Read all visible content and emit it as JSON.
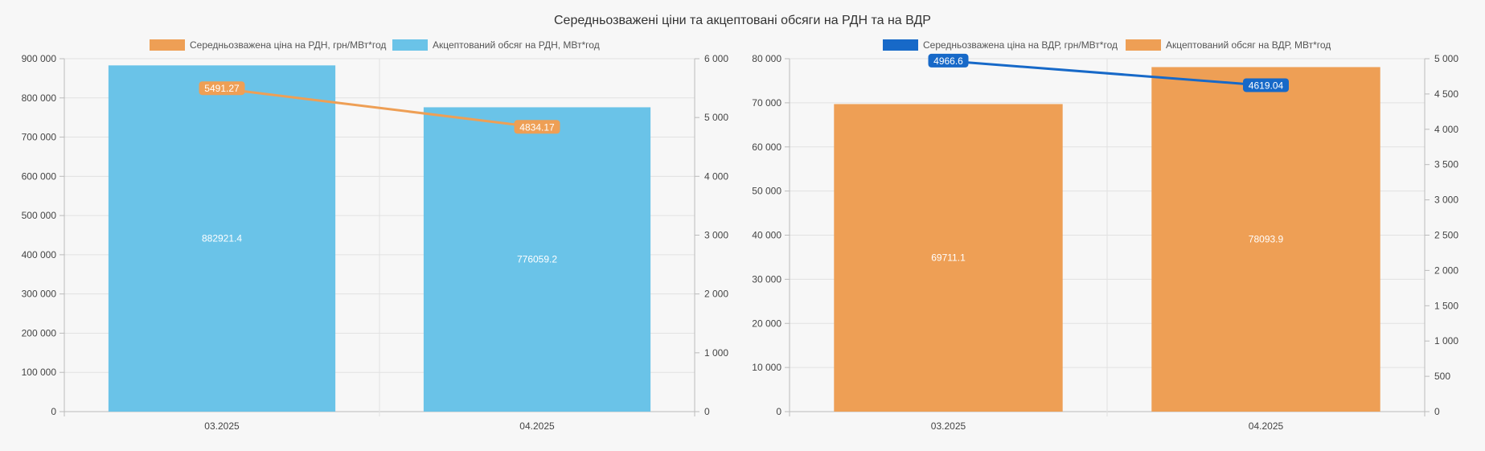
{
  "title": "Середньозважені ціни та акцептовані обсяги на РДН та на ВДР",
  "chart_data": [
    {
      "type": "bar+line",
      "categories": [
        "03.2025",
        "04.2025"
      ],
      "series": [
        {
          "name": "Середньозважена ціна на РДН, грн/МВт*год",
          "type": "line",
          "axis": "right",
          "color": "#EE9F55",
          "values": [
            5491.27,
            4834.17
          ]
        },
        {
          "name": "Акцептований обсяг на РДН, МВт*год",
          "type": "bar",
          "axis": "left",
          "color": "#6AC3E8",
          "values": [
            882921.4,
            776059.2
          ]
        }
      ],
      "y_left": {
        "range": [
          0,
          900000
        ],
        "ticks": [
          0,
          100000,
          200000,
          300000,
          400000,
          500000,
          600000,
          700000,
          800000,
          900000
        ],
        "tick_labels": [
          "0",
          "100 000",
          "200 000",
          "300 000",
          "400 000",
          "500 000",
          "600 000",
          "700 000",
          "800 000",
          "900 000"
        ]
      },
      "y_right": {
        "range": [
          0,
          6000
        ],
        "ticks": [
          0,
          1000,
          2000,
          3000,
          4000,
          5000,
          6000
        ],
        "tick_labels": [
          "0",
          "1 000",
          "2 000",
          "3 000",
          "4 000",
          "5 000",
          "6 000"
        ]
      },
      "bar_labels": [
        "882921.4",
        "776059.2"
      ],
      "point_labels": [
        "5491.27",
        "4834.17"
      ],
      "legend_position": "top-center",
      "grid": true
    },
    {
      "type": "bar+line",
      "categories": [
        "03.2025",
        "04.2025"
      ],
      "series": [
        {
          "name": "Середньозважена ціна на ВДР, грн/МВт*год",
          "type": "line",
          "axis": "right",
          "color": "#1769C8",
          "values": [
            4966.6,
            4619.04
          ]
        },
        {
          "name": "Акцептований обсяг на ВДР, МВт*год",
          "type": "bar",
          "axis": "left",
          "color": "#EE9F55",
          "values": [
            69711.1,
            78093.9
          ]
        }
      ],
      "y_left": {
        "range": [
          0,
          80000
        ],
        "ticks": [
          0,
          10000,
          20000,
          30000,
          40000,
          50000,
          60000,
          70000,
          80000
        ],
        "tick_labels": [
          "0",
          "10 000",
          "20 000",
          "30 000",
          "40 000",
          "50 000",
          "60 000",
          "70 000",
          "80 000"
        ]
      },
      "y_right": {
        "range": [
          0,
          5000
        ],
        "ticks": [
          0,
          500,
          1000,
          1500,
          2000,
          2500,
          3000,
          3500,
          4000,
          4500,
          5000
        ],
        "tick_labels": [
          "0",
          "500",
          "1 000",
          "1 500",
          "2 000",
          "2 500",
          "3 000",
          "3 500",
          "4 000",
          "4 500",
          "5 000"
        ]
      },
      "bar_labels": [
        "69711.1",
        "78093.9"
      ],
      "point_labels": [
        "4966.6",
        "4619.04"
      ],
      "legend_position": "top-center",
      "grid": true
    }
  ]
}
